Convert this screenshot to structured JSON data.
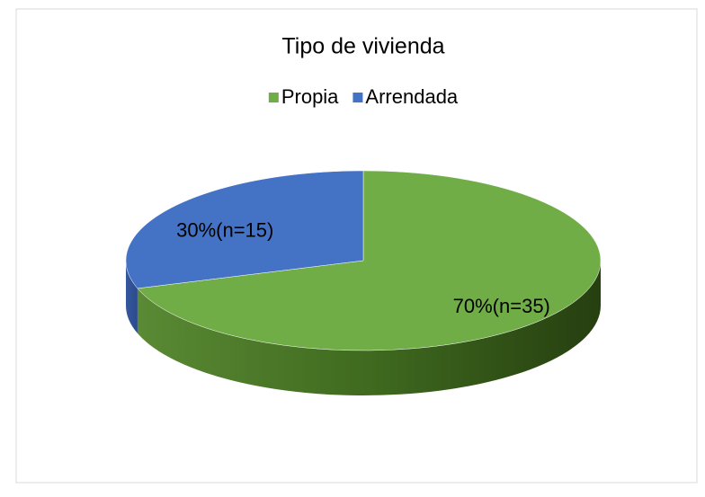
{
  "chart_data": {
    "type": "pie",
    "title": "Tipo de vivienda",
    "categories": [
      "Propia",
      "Arrendada"
    ],
    "values": [
      70,
      30
    ],
    "value_labels": [
      "70%(n=35)",
      "30%(n=15)"
    ],
    "colors": [
      "#70ad47",
      "#4472c4"
    ],
    "legend": "top"
  }
}
